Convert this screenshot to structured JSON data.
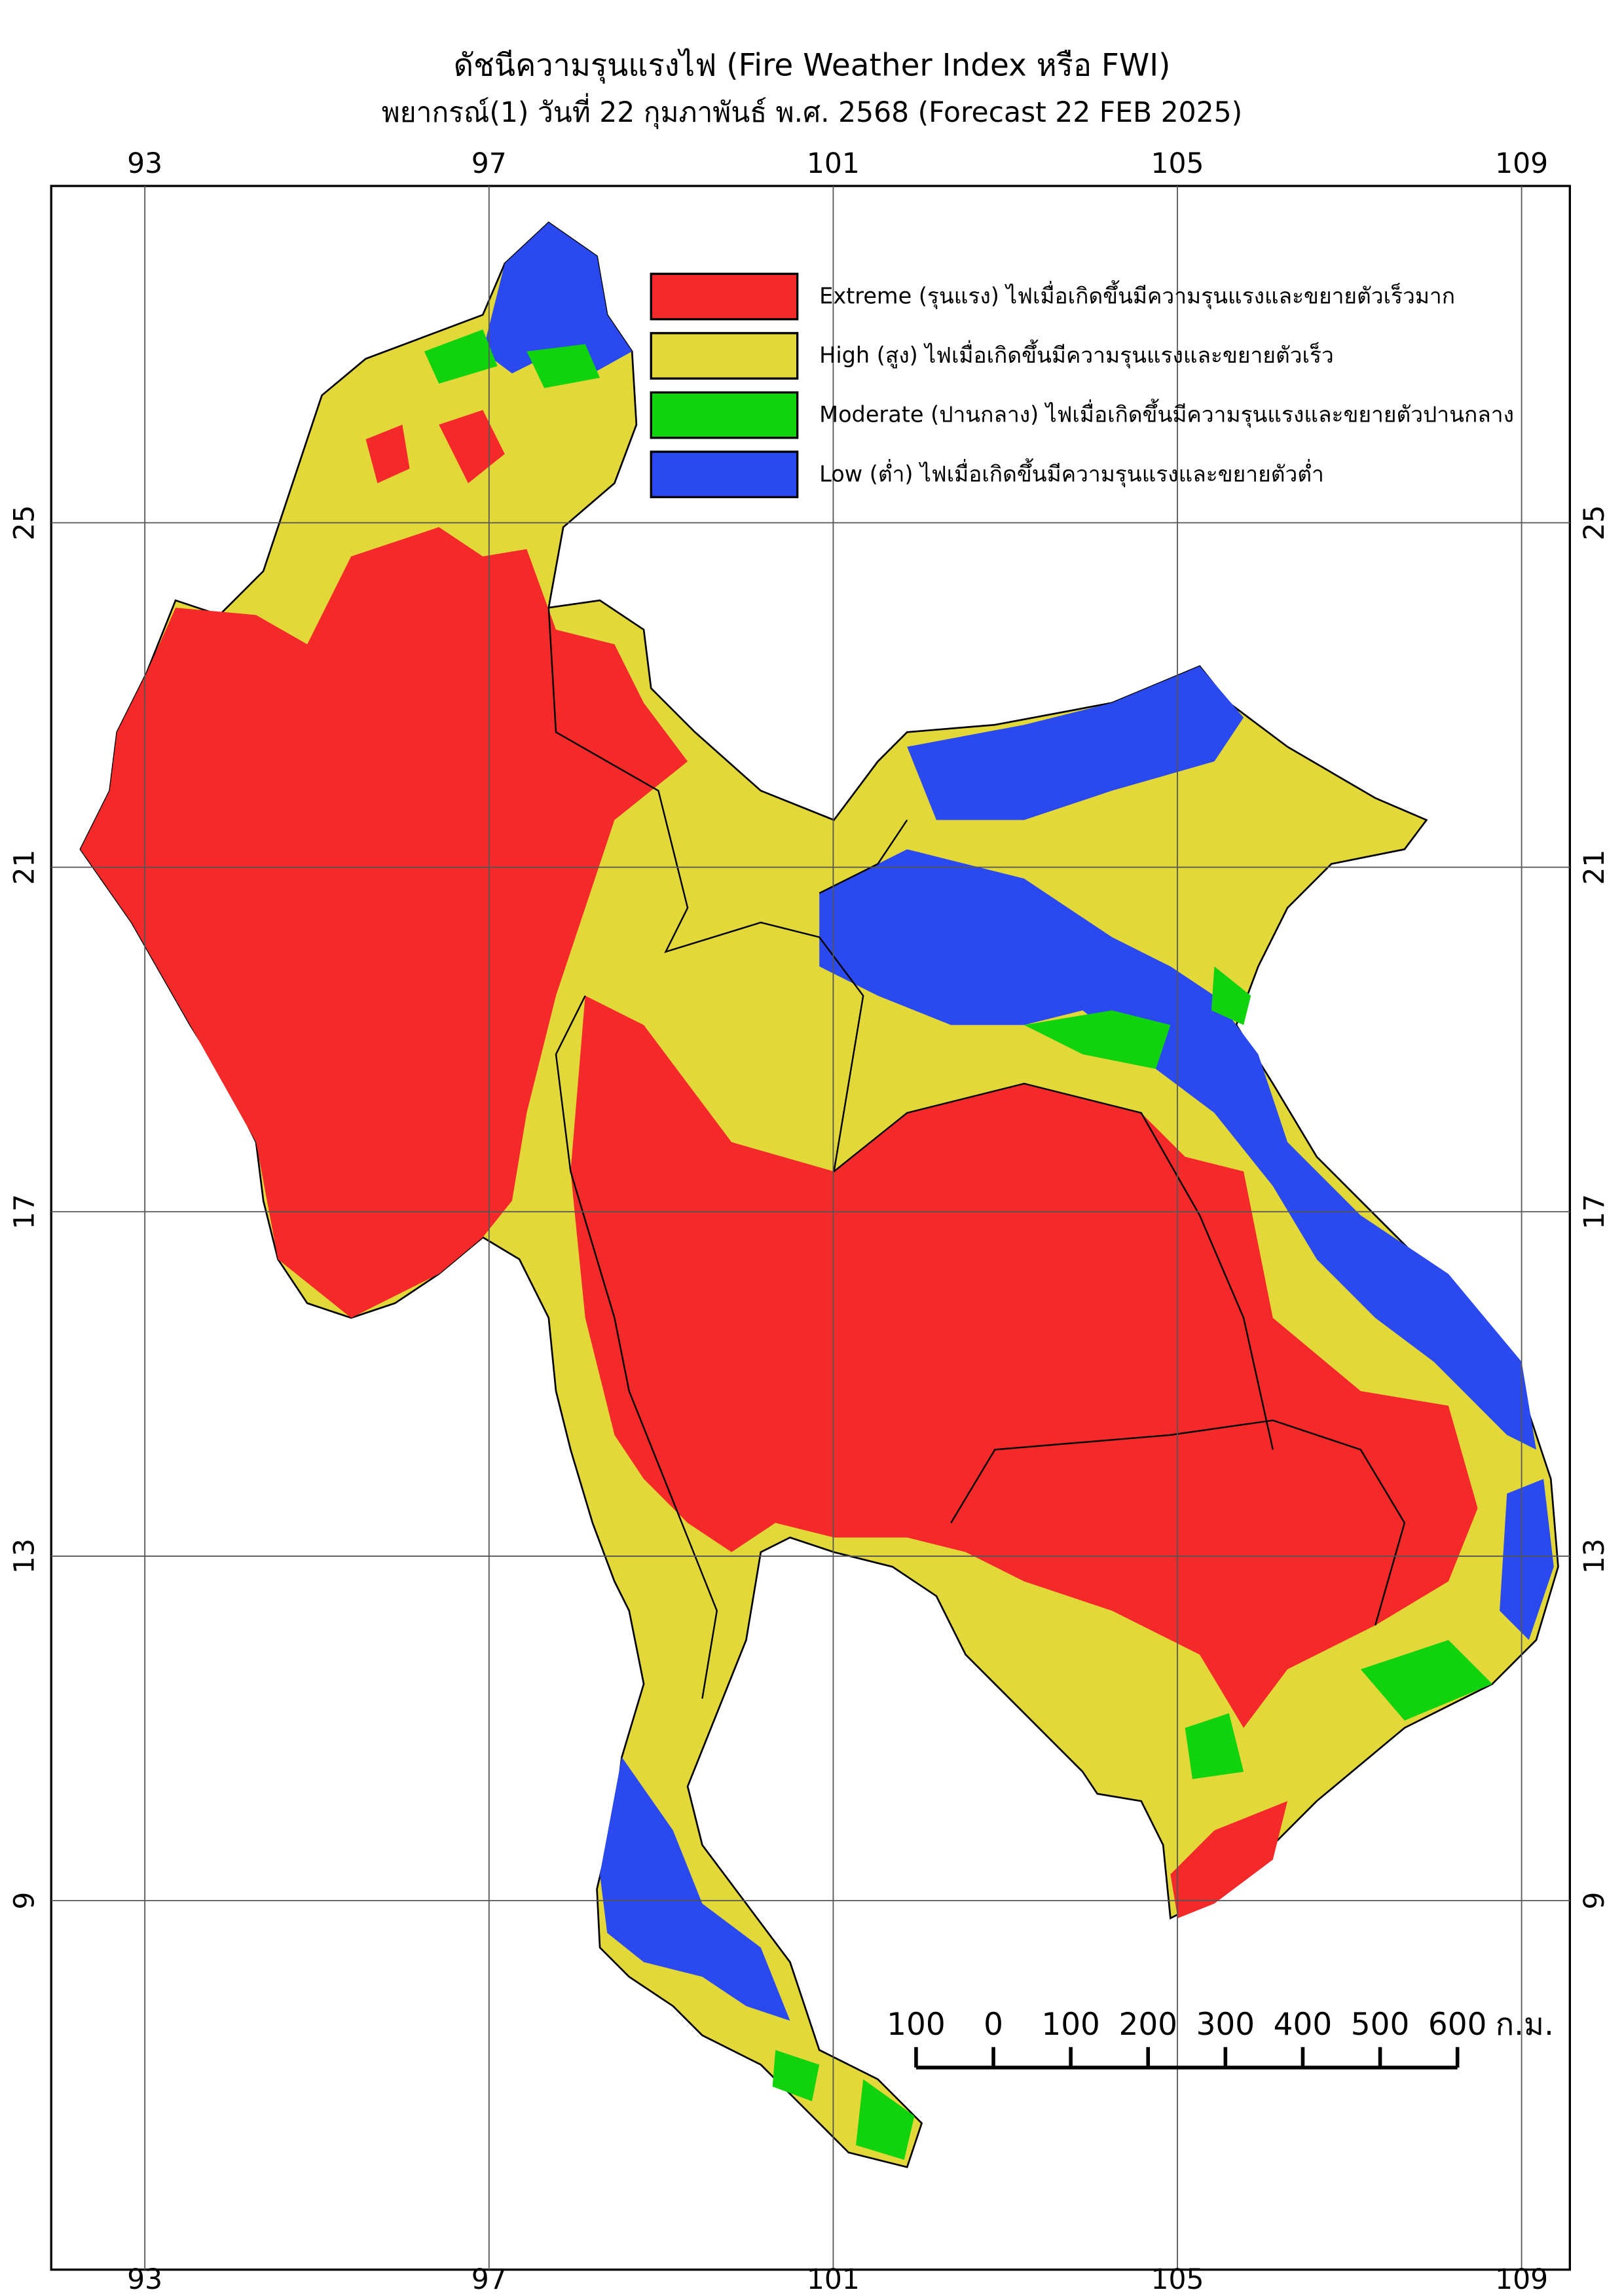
{
  "map": {
    "title": "ดัชนีความรุนแรงไฟ (Fire Weather Index หรือ FWI)",
    "subtitle": "พยากรณ์(1) วันที่ 22 กุมภาพันธ์ พ.ศ. 2568 (Forecast 22 FEB 2025)",
    "xticks": [
      93,
      97,
      101,
      105,
      109
    ],
    "yticks": [
      25,
      21,
      17,
      13,
      9
    ],
    "grid": true,
    "legend": [
      {
        "label": "Extreme (รุนแรง) ไฟเมื่อเกิดขึ้นมีความรุนแรงและขยายตัวเร็วมาก",
        "color": "#f42a2a"
      },
      {
        "label": "High (สูง) ไฟเมื่อเกิดขึ้นมีความรุนแรงและขยายตัวเร็ว",
        "color": "#e3d83a"
      },
      {
        "label": "Moderate (ปานกลาง) ไฟเมื่อเกิดขึ้นมีความรุนแรงและขยายตัวปานกลาง",
        "color": "#10d30d"
      },
      {
        "label": "Low (ต่ำ) ไฟเมื่อเกิดขึ้นมีความรุนแรงและขยายตัวต่ำ",
        "color": "#2a4af0"
      }
    ],
    "scale_bar": {
      "ticks": [
        {
          "value": -100,
          "label": "100"
        },
        0,
        100,
        200,
        300,
        400,
        500,
        600
      ],
      "unit": "ก.ม."
    }
  }
}
